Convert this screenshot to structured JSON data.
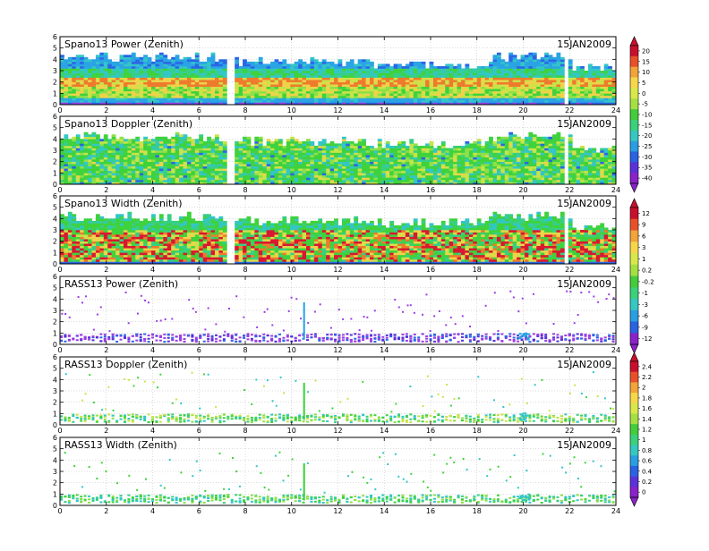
{
  "chart_data": {
    "type": "heatmap",
    "date": "15JAN2009",
    "x_ticks": [
      0,
      2,
      4,
      6,
      8,
      10,
      12,
      14,
      16,
      18,
      20,
      22,
      24
    ],
    "y_ticks": [
      0,
      1,
      2,
      3,
      4,
      5,
      6
    ],
    "xlim": [
      0,
      24
    ],
    "ylim": [
      0,
      6
    ],
    "grid": true,
    "panels": [
      {
        "title": "Spano13 Power (Zenith)",
        "date": "15JAN2009"
      },
      {
        "title": "Spano13 Doppler (Zenith)",
        "date": "15JAN2009"
      },
      {
        "title": "Spano13 Width (Zenith)",
        "date": "15JAN2009"
      },
      {
        "title": "RASS13 Power (Zenith)",
        "date": "15JAN2009"
      },
      {
        "title": "RASS13 Doppler (Zenith)",
        "date": "15JAN2009"
      },
      {
        "title": "RASS13 Width (Zenith)",
        "date": "15JAN2009"
      }
    ],
    "colorbars": [
      {
        "labels": [
          "20",
          "15",
          "10",
          "5",
          "0",
          "-5",
          "-10",
          "-15",
          "-20",
          "-25",
          "-30",
          "-35",
          "-40"
        ],
        "colors": [
          "#c8102e",
          "#e8502a",
          "#f2a33a",
          "#f6d64a",
          "#d8e84a",
          "#a6df42",
          "#44cc3a",
          "#3bd07a",
          "#35c8c0",
          "#2a9ee0",
          "#2a62e0",
          "#5a32d8",
          "#8a22c8"
        ]
      },
      {
        "labels": [
          "12",
          "9",
          "6",
          "3",
          "1",
          "0.2",
          "-0.2",
          "-1",
          "-3",
          "-6",
          "-9",
          "-12"
        ],
        "colors": [
          "#c8102e",
          "#e8502a",
          "#f2a33a",
          "#f6d64a",
          "#d8e84a",
          "#a6df42",
          "#44cc3a",
          "#3bd07a",
          "#35c8c0",
          "#2a9ee0",
          "#2a62e0",
          "#8a22c8"
        ]
      },
      {
        "labels": [
          "2.4",
          "2.2",
          "2",
          "1.8",
          "1.6",
          "1.4",
          "1.2",
          "1",
          "0.8",
          "0.6",
          "0.4",
          "0.2",
          "0"
        ],
        "colors": [
          "#c8102e",
          "#e8502a",
          "#f2a33a",
          "#f6d64a",
          "#d8e84a",
          "#a6df42",
          "#44cc3a",
          "#3bd07a",
          "#35c8c0",
          "#2a9ee0",
          "#2a62e0",
          "#5a32d8",
          "#8a22c8"
        ]
      }
    ]
  }
}
